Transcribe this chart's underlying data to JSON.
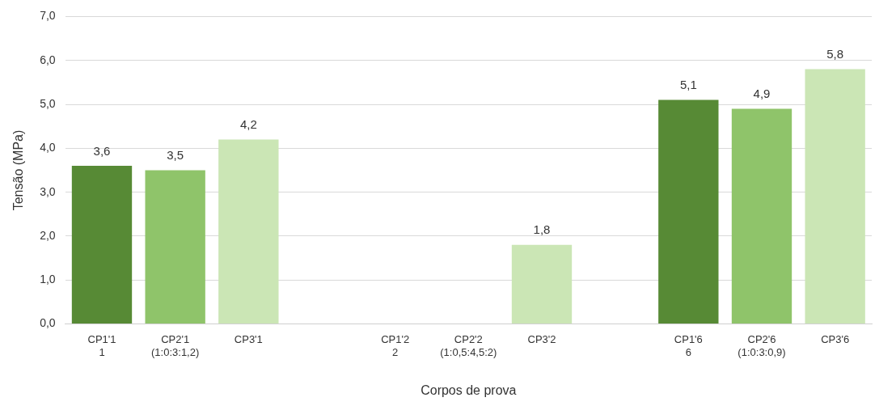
{
  "chart_data": {
    "type": "bar",
    "xlabel": "Corpos de prova",
    "ylabel": "Tensão (MPa)",
    "categories": [
      "CP1'1\n1",
      "CP2'1\n(1:0:3:1,2)",
      "CP3'1",
      null,
      "CP1'2\n2",
      "CP2'2\n(1:0,5:4,5:2)",
      "CP3'2",
      null,
      "CP1'6\n6",
      "CP2'6\n(1:0:3:0,9)",
      "CP3'6"
    ],
    "values": [
      3.6,
      3.5,
      4.2,
      null,
      null,
      null,
      1.8,
      null,
      5.1,
      4.9,
      5.8
    ],
    "value_labels": [
      "3,6",
      "3,5",
      "4,2",
      null,
      null,
      null,
      "1,8",
      null,
      "5,1",
      "4,9",
      "5,8"
    ],
    "colors": [
      "#578a35",
      "#8fc46a",
      "#cbe6b5",
      null,
      "#578a35",
      "#8fc46a",
      "#cbe6b5",
      null,
      "#578a35",
      "#8fc46a",
      "#cbe6b5"
    ],
    "ylim": [
      0,
      7
    ],
    "yticks": [
      {
        "value": 0,
        "label": "0,0"
      },
      {
        "value": 1,
        "label": "1,0"
      },
      {
        "value": 2,
        "label": "2,0"
      },
      {
        "value": 3,
        "label": "3,0"
      },
      {
        "value": 4,
        "label": "4,0"
      },
      {
        "value": 5,
        "label": "5,0"
      },
      {
        "value": 6,
        "label": "6,0"
      },
      {
        "value": 7,
        "label": "7,0"
      }
    ],
    "grid": "y"
  }
}
